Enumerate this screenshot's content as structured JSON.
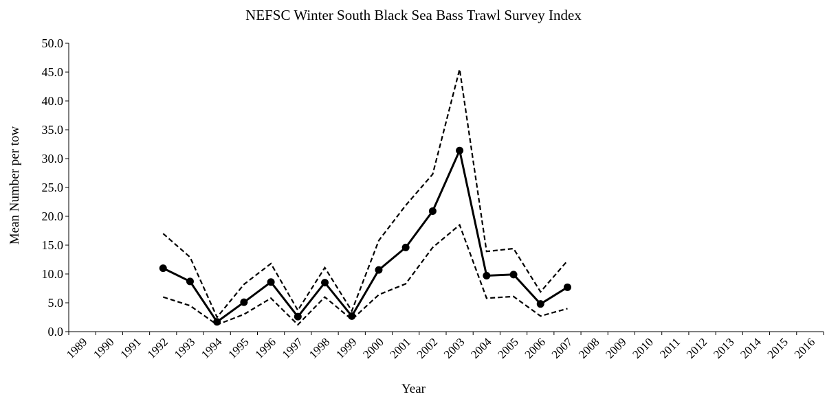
{
  "chart_data": {
    "type": "line",
    "title": "NEFSC Winter South Black Sea Bass Trawl Survey Index",
    "xlabel": "Year",
    "ylabel": "Mean Number per tow",
    "ylim": [
      0,
      50
    ],
    "yticks": [
      "0.0",
      "5.0",
      "10.0",
      "15.0",
      "20.0",
      "25.0",
      "30.0",
      "35.0",
      "40.0",
      "45.0",
      "50.0"
    ],
    "categories": [
      "1989",
      "1990",
      "1991",
      "1992",
      "1993",
      "1994",
      "1995",
      "1996",
      "1997",
      "1998",
      "1999",
      "2000",
      "2001",
      "2002",
      "2003",
      "2004",
      "2005",
      "2006",
      "2007",
      "2008",
      "2009",
      "2010",
      "2011",
      "2012",
      "2013",
      "2014",
      "2015",
      "2016"
    ],
    "series": [
      {
        "style": "solid-with-markers",
        "x": [
          "1992",
          "1993",
          "1994",
          "1995",
          "1996",
          "1997",
          "1998",
          "1999",
          "2000",
          "2001",
          "2002",
          "2003",
          "2004",
          "2005",
          "2006",
          "2007"
        ],
        "values": [
          11.0,
          8.7,
          1.7,
          5.1,
          8.6,
          2.6,
          8.5,
          2.7,
          10.7,
          14.6,
          20.9,
          31.4,
          9.7,
          9.9,
          4.8,
          7.7
        ]
      },
      {
        "style": "dashed",
        "x": [
          "1992",
          "1993",
          "1994",
          "1995",
          "1996",
          "1997",
          "1998",
          "1999",
          "2000",
          "2001",
          "2002",
          "2003",
          "2004",
          "2005",
          "2006",
          "2007"
        ],
        "values": [
          17.0,
          12.9,
          2.5,
          8.2,
          11.8,
          3.7,
          11.1,
          3.6,
          15.8,
          21.9,
          27.3,
          45.5,
          13.9,
          14.4,
          6.9,
          12.3
        ]
      },
      {
        "style": "dashed",
        "x": [
          "1992",
          "1993",
          "1994",
          "1995",
          "1996",
          "1997",
          "1998",
          "1999",
          "2000",
          "2001",
          "2002",
          "2003",
          "2004",
          "2005",
          "2006",
          "2007"
        ],
        "values": [
          6.0,
          4.5,
          1.2,
          3.0,
          5.8,
          1.2,
          6.0,
          2.1,
          6.4,
          8.3,
          14.6,
          18.5,
          5.8,
          6.1,
          2.7,
          4.0
        ]
      }
    ],
    "grid": false,
    "legend": "none"
  }
}
